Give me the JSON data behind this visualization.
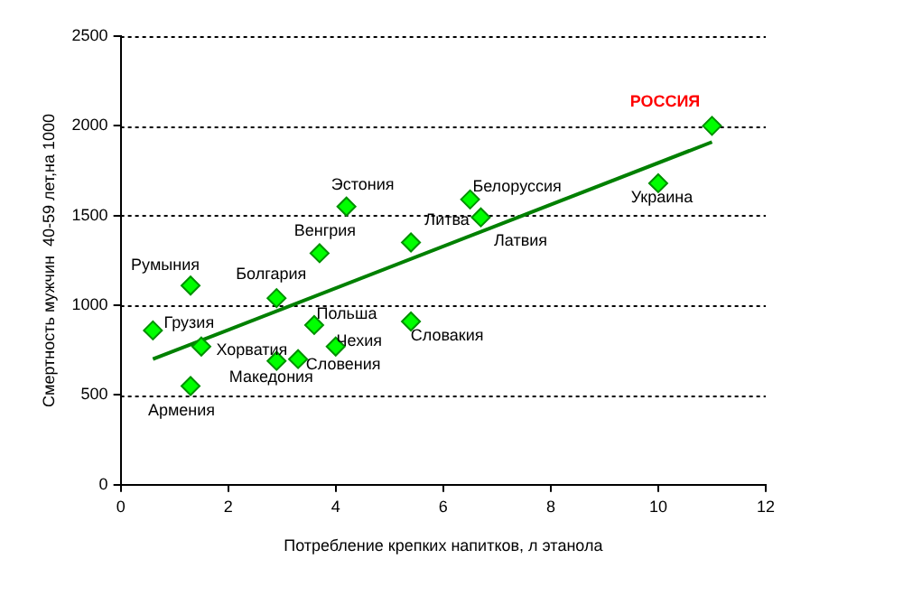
{
  "chart_data": {
    "type": "scatter",
    "xlabel": "Потребление крепких напитков, л этанола",
    "ylabel": "Смертность мужчин  40-59 лет,на 1000",
    "xlim": [
      0,
      12
    ],
    "xticks": [
      0,
      2,
      4,
      6,
      8,
      10,
      12
    ],
    "ylim": [
      0,
      2500
    ],
    "yticks": [
      0,
      500,
      1000,
      1500,
      2000,
      2500
    ],
    "grid": "y",
    "legend": false,
    "marker": "diamond",
    "series": [
      {
        "type": "scatter",
        "color": "#00ff00",
        "x": [
          11.0,
          10.0,
          6.5,
          6.7,
          5.4,
          4.2,
          3.7,
          1.3,
          2.9,
          3.6,
          5.4,
          0.6,
          1.5,
          4.0,
          2.9,
          3.3,
          1.3
        ],
        "values": [
          2000,
          1680,
          1590,
          1490,
          1350,
          1550,
          1290,
          1110,
          1040,
          890,
          910,
          860,
          770,
          770,
          690,
          700,
          550
        ],
        "value_labels": [
          "РОССИЯ",
          "Украина",
          "Белоруссия",
          "Латвия",
          "Литва",
          "Эстония",
          "Венгрия",
          "Румыния",
          "Болгария",
          "Польша",
          "Словакия",
          "Грузия",
          "Хорватия",
          "Чехия",
          "Македония",
          "Словения",
          "Армения"
        ]
      },
      {
        "type": "line",
        "color": "#008000",
        "marker": "none",
        "x": [
          0.6,
          11.0
        ],
        "values": [
          700,
          1910
        ]
      }
    ]
  }
}
